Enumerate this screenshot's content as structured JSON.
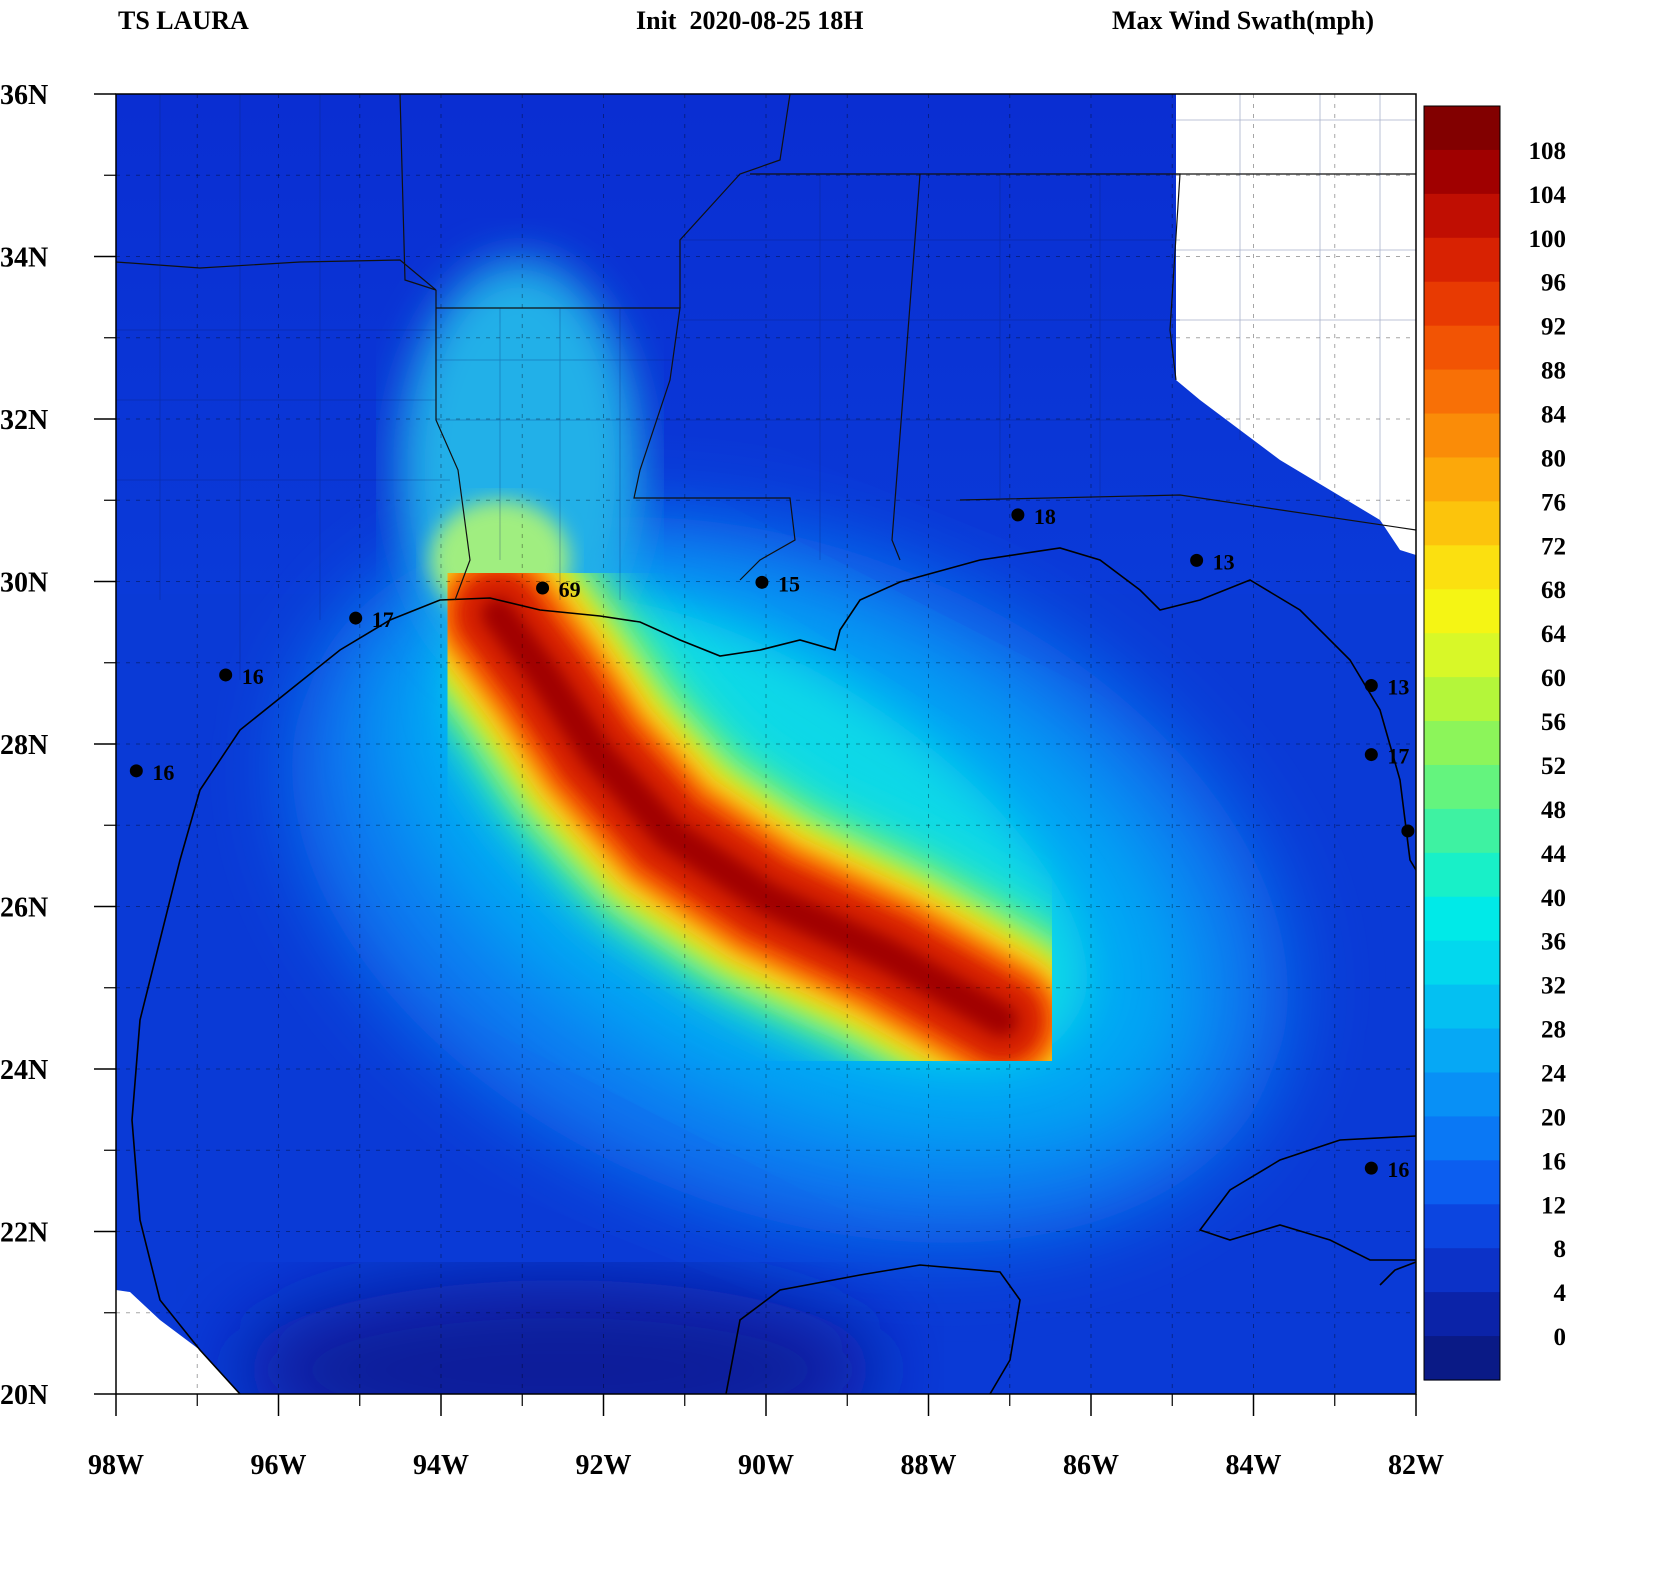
{
  "header": {
    "storm": "TS LAURA",
    "init": "Init  2020-08-25 18H",
    "product": "Max Wind Swath(mph)"
  },
  "map": {
    "lon_range": [
      -98,
      -82
    ],
    "lat_range": [
      20,
      36
    ],
    "x_ticks": [
      "98W",
      "96W",
      "94W",
      "92W",
      "90W",
      "88W",
      "86W",
      "84W",
      "82W"
    ],
    "y_ticks": [
      "36N",
      "34N",
      "32N",
      "30N",
      "28N",
      "26N",
      "24N",
      "22N",
      "20N"
    ],
    "track_max_mph": 108,
    "track_points": [
      {
        "lon": -87.1,
        "lat": 24.6
      },
      {
        "lon": -88.5,
        "lat": 25.4
      },
      {
        "lon": -90.0,
        "lat": 26.1
      },
      {
        "lon": -91.2,
        "lat": 26.9
      },
      {
        "lon": -92.1,
        "lat": 27.9
      },
      {
        "lon": -92.7,
        "lat": 28.8
      },
      {
        "lon": -93.3,
        "lat": 29.6
      }
    ],
    "stations": [
      {
        "lon": -92.75,
        "lat": 29.92,
        "value": "69"
      },
      {
        "lon": -90.05,
        "lat": 29.99,
        "value": "15"
      },
      {
        "lon": -86.9,
        "lat": 30.82,
        "value": "18"
      },
      {
        "lon": -84.7,
        "lat": 30.26,
        "value": "13"
      },
      {
        "lon": -95.05,
        "lat": 29.55,
        "value": "17"
      },
      {
        "lon": -96.65,
        "lat": 28.85,
        "value": "16"
      },
      {
        "lon": -97.75,
        "lat": 27.67,
        "value": "16"
      },
      {
        "lon": -82.55,
        "lat": 28.72,
        "value": "13"
      },
      {
        "lon": -82.55,
        "lat": 27.87,
        "value": "17"
      },
      {
        "lon": -82.1,
        "lat": 26.93,
        "value": ""
      },
      {
        "lon": -82.55,
        "lat": 22.78,
        "value": "16"
      }
    ]
  },
  "colorbar": {
    "labels": [
      "108",
      "104",
      "100",
      "96",
      "92",
      "88",
      "84",
      "80",
      "76",
      "72",
      "68",
      "64",
      "60",
      "56",
      "52",
      "48",
      "44",
      "40",
      "36",
      "32",
      "28",
      "24",
      "20",
      "16",
      "12",
      "8",
      "4",
      "0"
    ],
    "colors": [
      "#0a1a86",
      "#0b23a8",
      "#0c32c8",
      "#0c45e0",
      "#0c5ef0",
      "#0a78f5",
      "#0890f6",
      "#06a8f5",
      "#04c0f2",
      "#02d8ee",
      "#00eae8",
      "#18f0c8",
      "#3ef2a2",
      "#64f47e",
      "#8cf55a",
      "#b4f63a",
      "#d8f828",
      "#f5f514",
      "#fbe010",
      "#fcc40c",
      "#fca80a",
      "#fa8c08",
      "#f87006",
      "#f25404",
      "#e83a02",
      "#d82202",
      "#c00e02",
      "#a00000",
      "#820000"
    ]
  }
}
